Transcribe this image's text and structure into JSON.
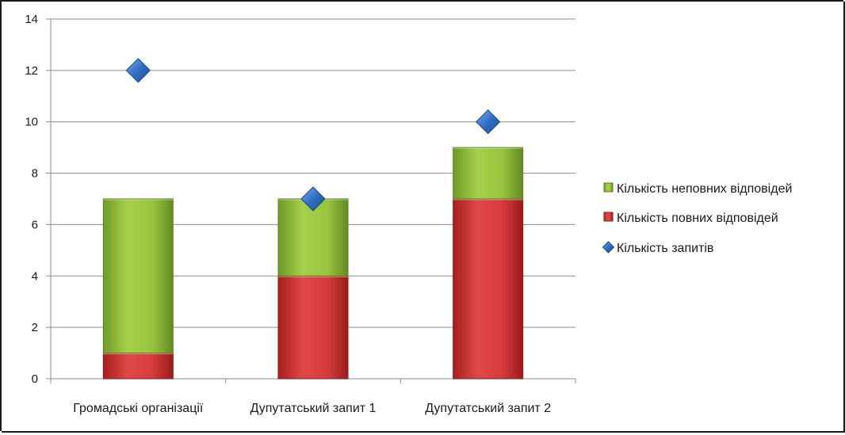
{
  "chart_data": {
    "type": "bar",
    "stacked": true,
    "categories": [
      "Громадські організації",
      "Дупутатський запит 1",
      "Дупутатський запит 2"
    ],
    "series": [
      {
        "name": "Кількість повних відповідей",
        "kind": "bar",
        "values": [
          1,
          4,
          7
        ],
        "color": "#d23b3b"
      },
      {
        "name": "Кількість неповних відповідей",
        "kind": "bar",
        "values": [
          6,
          3,
          2
        ],
        "color": "#8fbf3a"
      },
      {
        "name": "Кількість запитів",
        "kind": "marker",
        "marker": "diamond",
        "values": [
          12,
          7,
          10
        ],
        "color": "#2f6fc2"
      }
    ],
    "ylim": [
      0,
      14
    ],
    "yticks": [
      0,
      2,
      4,
      6,
      8,
      10,
      12,
      14
    ],
    "grid": true,
    "legend_position": "right",
    "legend_order": [
      "Кількість неповних відповідей",
      "Кількість повних відповідей",
      "Кількість запитів"
    ]
  }
}
